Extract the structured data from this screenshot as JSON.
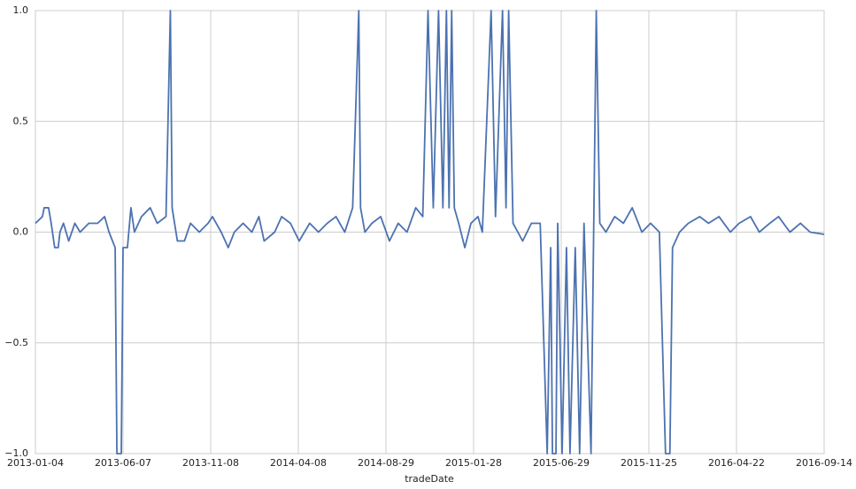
{
  "chart_data": {
    "type": "line",
    "x_label": "tradeDate",
    "xlim": [
      0,
      900
    ],
    "xticks": [
      {
        "value": 0,
        "label": "2013-01-04"
      },
      {
        "value": 100,
        "label": "2013-06-07"
      },
      {
        "value": 200,
        "label": "2013-11-08"
      },
      {
        "value": 300,
        "label": "2014-04-08"
      },
      {
        "value": 400,
        "label": "2014-08-29"
      },
      {
        "value": 500,
        "label": "2015-01-28"
      },
      {
        "value": 600,
        "label": "2015-06-29"
      },
      {
        "value": 700,
        "label": "2015-11-25"
      },
      {
        "value": 800,
        "label": "2016-04-22"
      },
      {
        "value": 900,
        "label": "2016-09-14"
      }
    ],
    "ylim": [
      -1,
      1
    ],
    "yticks": [
      {
        "value": -1,
        "label": "−1.0"
      },
      {
        "value": -0.5,
        "label": "−0.5"
      },
      {
        "value": 0,
        "label": "0.0"
      },
      {
        "value": 0.5,
        "label": "0.5"
      },
      {
        "value": 1,
        "label": "1.0"
      }
    ],
    "grid": true,
    "color": "#4c72b0",
    "x": [
      0,
      8,
      10,
      15,
      18,
      22,
      26,
      28,
      32,
      38,
      45,
      51,
      61,
      71,
      79,
      84,
      91,
      93,
      98,
      100,
      105,
      109,
      113,
      121,
      131,
      139,
      149,
      154,
      156,
      162,
      170,
      177,
      187,
      197,
      202,
      212,
      220,
      227,
      237,
      247,
      255,
      261,
      273,
      281,
      291,
      301,
      313,
      323,
      333,
      343,
      353,
      362,
      369,
      371,
      376,
      384,
      394,
      404,
      414,
      424,
      434,
      442,
      448,
      454,
      460,
      465,
      469,
      472,
      475,
      478,
      483,
      490,
      497,
      505,
      510,
      520,
      525,
      533,
      537,
      540,
      545,
      556,
      566,
      576,
      584,
      588,
      590,
      594,
      596,
      601,
      606,
      610,
      616,
      621,
      626,
      634,
      640,
      644,
      651,
      661,
      671,
      681,
      692,
      702,
      712,
      719,
      724,
      727,
      735,
      745,
      758,
      768,
      780,
      793,
      803,
      816,
      826,
      838,
      848,
      861,
      873,
      884,
      900
    ],
    "values": [
      0.04,
      0.07,
      0.11,
      0.11,
      0.04,
      -0.07,
      -0.07,
      0.0,
      0.04,
      -0.04,
      0.04,
      0.0,
      0.04,
      0.04,
      0.07,
      0.0,
      -0.07,
      -1,
      -1,
      -0.07,
      -0.07,
      0.11,
      0.0,
      0.07,
      0.11,
      0.04,
      0.07,
      1,
      0.11,
      -0.04,
      -0.04,
      0.04,
      0.0,
      0.04,
      0.07,
      0.0,
      -0.07,
      0.0,
      0.04,
      0.0,
      0.07,
      -0.04,
      0.0,
      0.07,
      0.04,
      -0.04,
      0.04,
      0.0,
      0.04,
      0.07,
      0.0,
      0.11,
      1,
      0.11,
      0.0,
      0.04,
      0.07,
      -0.04,
      0.04,
      0.0,
      0.11,
      0.07,
      1,
      0.11,
      1,
      0.11,
      1,
      0.11,
      1,
      0.11,
      0.04,
      -0.07,
      0.04,
      0.07,
      0.0,
      1,
      0.07,
      1,
      0.11,
      1,
      0.04,
      -0.04,
      0.04,
      0.04,
      -1,
      -0.07,
      -1,
      -1,
      0.04,
      -1,
      -0.07,
      -1,
      -0.07,
      -1,
      0.04,
      -1,
      1,
      0.04,
      0.0,
      0.07,
      0.04,
      0.11,
      0.0,
      0.04,
      0.0,
      -1,
      -1,
      -0.07,
      0.0,
      0.04,
      0.07,
      0.04,
      0.07,
      0.0,
      0.04,
      0.07,
      0.0,
      0.04,
      0.07,
      0.0,
      0.04,
      0.0,
      -0.01
    ]
  }
}
